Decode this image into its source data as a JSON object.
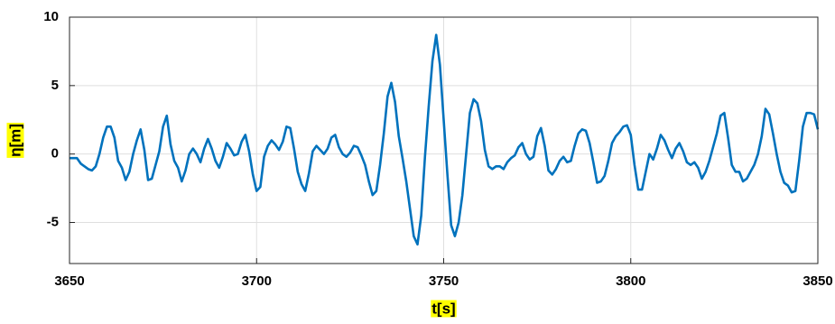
{
  "chart_data": {
    "type": "line",
    "xlabel": "t[s]",
    "ylabel": "η[m]",
    "xlim": [
      3650,
      3850
    ],
    "xticks": [
      3650,
      3700,
      3750,
      3800,
      3850
    ],
    "ylim": [
      -8,
      10
    ],
    "yticks": [
      -5,
      0,
      5,
      10
    ],
    "grid": true,
    "x": [
      3650,
      3651,
      3652,
      3653,
      3654,
      3655,
      3656,
      3657,
      3658,
      3659,
      3660,
      3661,
      3662,
      3663,
      3664,
      3665,
      3666,
      3667,
      3668,
      3669,
      3670,
      3671,
      3672,
      3673,
      3674,
      3675,
      3676,
      3677,
      3678,
      3679,
      3680,
      3681,
      3682,
      3683,
      3684,
      3685,
      3686,
      3687,
      3688,
      3689,
      3690,
      3691,
      3692,
      3693,
      3694,
      3695,
      3696,
      3697,
      3698,
      3699,
      3700,
      3701,
      3702,
      3703,
      3704,
      3705,
      3706,
      3707,
      3708,
      3709,
      3710,
      3711,
      3712,
      3713,
      3714,
      3715,
      3716,
      3717,
      3718,
      3719,
      3720,
      3721,
      3722,
      3723,
      3724,
      3725,
      3726,
      3727,
      3728,
      3729,
      3730,
      3731,
      3732,
      3733,
      3734,
      3735,
      3736,
      3737,
      3738,
      3739,
      3740,
      3741,
      3742,
      3743,
      3744,
      3745,
      3746,
      3747,
      3748,
      3749,
      3750,
      3751,
      3752,
      3753,
      3754,
      3755,
      3756,
      3757,
      3758,
      3759,
      3760,
      3761,
      3762,
      3763,
      3764,
      3765,
      3766,
      3767,
      3768,
      3769,
      3770,
      3771,
      3772,
      3773,
      3774,
      3775,
      3776,
      3777,
      3778,
      3779,
      3780,
      3781,
      3782,
      3783,
      3784,
      3785,
      3786,
      3787,
      3788,
      3789,
      3790,
      3791,
      3792,
      3793,
      3794,
      3795,
      3796,
      3797,
      3798,
      3799,
      3800,
      3801,
      3802,
      3803,
      3804,
      3805,
      3806,
      3807,
      3808,
      3809,
      3810,
      3811,
      3812,
      3813,
      3814,
      3815,
      3816,
      3817,
      3818,
      3819,
      3820,
      3821,
      3822,
      3823,
      3824,
      3825,
      3826,
      3827,
      3828,
      3829,
      3830,
      3831,
      3832,
      3833,
      3834,
      3835,
      3836,
      3837,
      3838,
      3839,
      3840,
      3841,
      3842,
      3843,
      3844,
      3845,
      3846,
      3847,
      3848,
      3849,
      3850
    ],
    "series": [
      {
        "color": "#0072bd",
        "values": [
          -0.3,
          -0.3,
          -0.3,
          -0.7,
          -0.9,
          -1.1,
          -1.2,
          -0.9,
          0.0,
          1.2,
          2.0,
          2.0,
          1.2,
          -0.5,
          -1.0,
          -1.9,
          -1.3,
          0.0,
          1.0,
          1.8,
          0.3,
          -1.9,
          -1.8,
          -0.8,
          0.2,
          2.0,
          2.8,
          0.7,
          -0.5,
          -1.0,
          -2.0,
          -1.2,
          0.0,
          0.4,
          0.0,
          -0.6,
          0.4,
          1.1,
          0.4,
          -0.5,
          -1.0,
          -0.2,
          0.8,
          0.4,
          -0.1,
          0.0,
          0.9,
          1.4,
          0.2,
          -1.5,
          -2.7,
          -2.4,
          -0.2,
          0.6,
          1.0,
          0.7,
          0.3,
          0.9,
          2.0,
          1.9,
          0.4,
          -1.3,
          -2.2,
          -2.7,
          -1.4,
          0.2,
          0.6,
          0.3,
          0.0,
          0.4,
          1.2,
          1.4,
          0.5,
          0.0,
          -0.2,
          0.1,
          0.6,
          0.5,
          -0.1,
          -0.8,
          -2.0,
          -3.0,
          -2.7,
          -0.8,
          1.5,
          4.2,
          5.2,
          3.8,
          1.3,
          -0.3,
          -2.0,
          -4.0,
          -6.0,
          -6.6,
          -4.5,
          -0.2,
          3.5,
          6.8,
          8.7,
          6.5,
          2.5,
          -1.5,
          -5.2,
          -6.0,
          -5.0,
          -3.0,
          0.0,
          3.0,
          4.0,
          3.7,
          2.4,
          0.3,
          -0.9,
          -1.1,
          -0.9,
          -0.9,
          -1.1,
          -0.6,
          -0.3,
          -0.1,
          0.5,
          0.8,
          0.0,
          -0.4,
          -0.2,
          1.3,
          1.9,
          0.6,
          -1.2,
          -1.5,
          -1.1,
          -0.5,
          -0.2,
          -0.6,
          -0.5,
          0.6,
          1.5,
          1.8,
          1.7,
          0.8,
          -0.6,
          -2.1,
          -2.0,
          -1.6,
          -0.5,
          0.8,
          1.3,
          1.6,
          2.0,
          2.1,
          1.4,
          -0.8,
          -2.6,
          -2.6,
          -1.3,
          0.0,
          -0.4,
          0.4,
          1.4,
          1.0,
          0.3,
          -0.3,
          0.4,
          0.8,
          0.2,
          -0.6,
          -0.8,
          -0.6,
          -1.0,
          -1.8,
          -1.3,
          -0.5,
          0.5,
          1.5,
          2.8,
          3.0,
          1.2,
          -0.8,
          -1.3,
          -1.3,
          -2.0,
          -1.8,
          -1.3,
          -0.8,
          0.0,
          1.3,
          3.3,
          2.9,
          1.5,
          0.0,
          -1.3,
          -2.1,
          -2.3,
          -2.8,
          -2.7,
          -0.5,
          2.0,
          3.0,
          3.0,
          2.9,
          1.8
        ]
      }
    ]
  }
}
